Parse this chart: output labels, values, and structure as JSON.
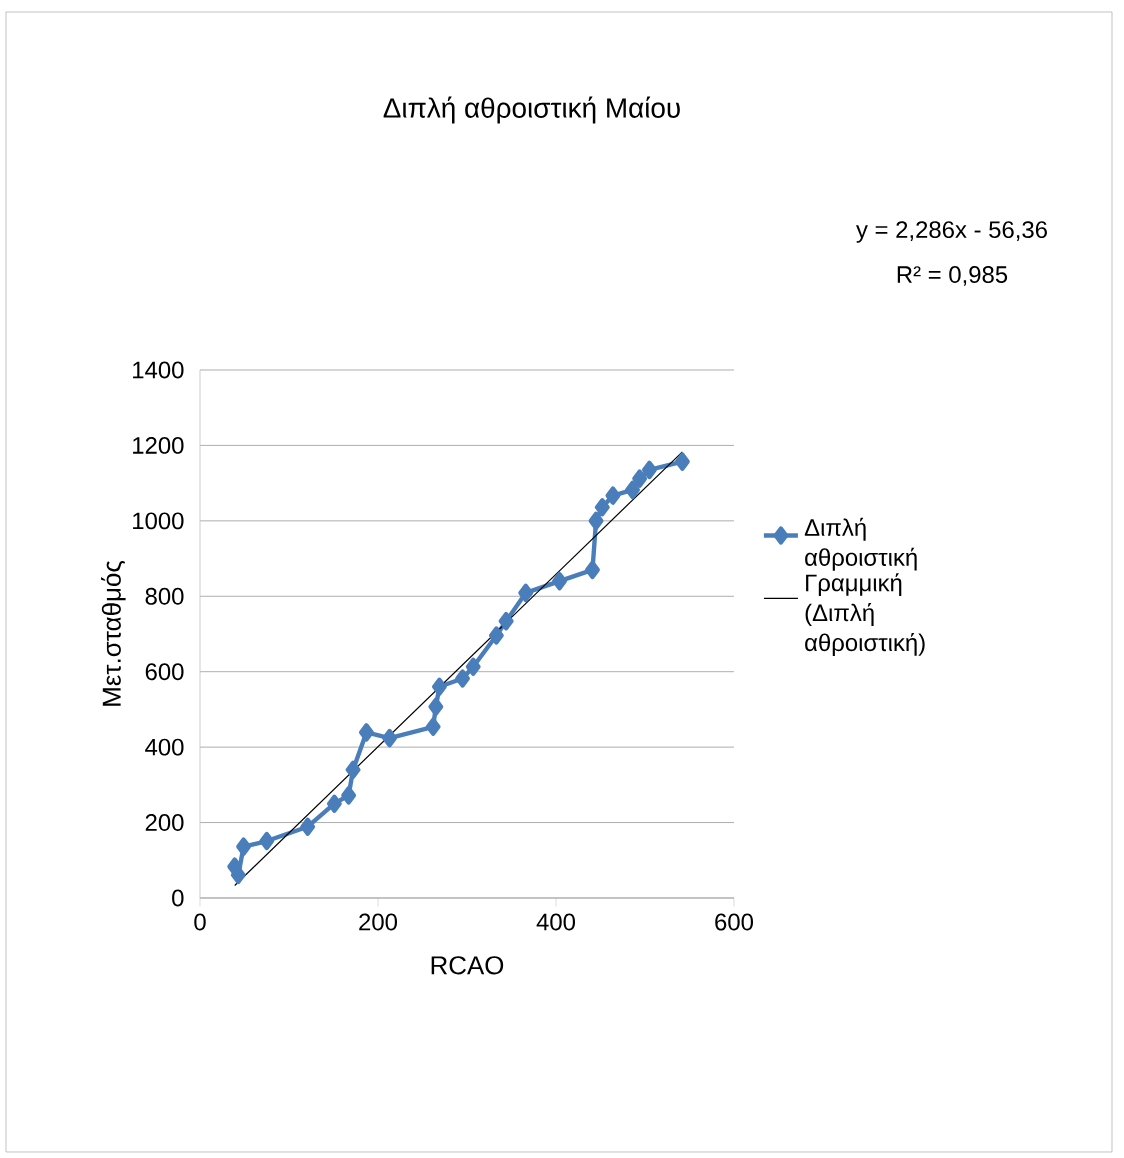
{
  "chart_data": {
    "type": "line",
    "title": "Διπλή αθροιστική Μαίου",
    "xlabel": "RCAO",
    "ylabel": "Μετ.σταθμός",
    "xlim": [
      0,
      600
    ],
    "xticks": [
      0,
      200,
      400,
      600
    ],
    "ylim": [
      0,
      1400
    ],
    "yticks": [
      0,
      200,
      400,
      600,
      800,
      1000,
      1200,
      1400
    ],
    "grid": "y",
    "legend": "right",
    "marker": "diamond",
    "annotations": [
      "y = 2,286x - 56,36",
      "R² = 0,985"
    ],
    "series": [
      {
        "name": "Διπλή αθροιστική",
        "color": "#4a7ebb",
        "x": [
          39,
          43,
          49,
          75,
          121,
          151,
          167,
          172,
          187,
          213,
          262,
          265,
          269,
          295,
          307,
          333,
          344,
          366,
          404,
          441,
          445,
          452,
          464,
          486,
          494,
          505,
          542
        ],
        "values": [
          83,
          61,
          136,
          151,
          189,
          250,
          272,
          340,
          439,
          424,
          454,
          507,
          560,
          582,
          613,
          696,
          734,
          809,
          840,
          870,
          1000,
          1036,
          1067,
          1082,
          1112,
          1135,
          1157
        ]
      },
      {
        "name": "Γραμμική (Διπλή αθροιστική)",
        "color": "#000000",
        "marker": "none",
        "x": [
          39,
          542
        ],
        "values": [
          33,
          1183
        ]
      }
    ]
  }
}
